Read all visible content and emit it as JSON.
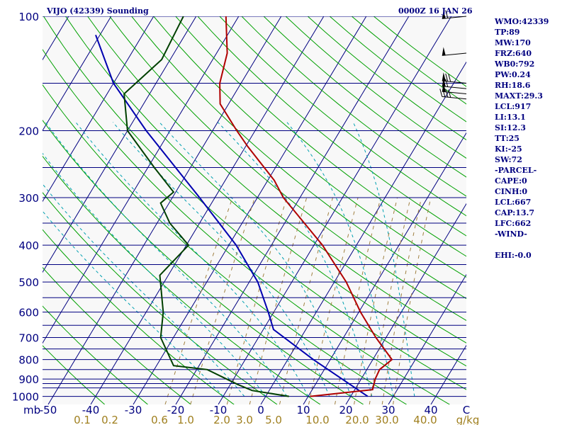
{
  "header": {
    "station": "VIJO (42339) Sounding",
    "time": "0000Z 16 JAN 26"
  },
  "indices": [
    "WMO:42339",
    "TP:89",
    "MW:170",
    "FRZ:640",
    "WB0:792",
    "PW:0.24",
    "RH:18.6",
    "MAXT:29.3",
    "LCL:917",
    "LI:13.1",
    "SI:12.3",
    "TT:25",
    "KI:-25",
    "SW:72",
    "-PARCEL-",
    "CAPE:0",
    "CINH:0",
    "LCL:667",
    "CAP:13.7",
    "LFC:662",
    "-WIND-",
    "",
    "EHI:-0.0"
  ],
  "colors": {
    "text": "#000080",
    "isobar": "#000080",
    "isotherm": "#000080",
    "dry_adiabat": "#00a000",
    "moist_adiabat": "#00a0b0",
    "mixing_ratio": "#a08040",
    "temperature": "#b00000",
    "dewpoint": "#004000",
    "parcel": "#0000b0",
    "mixing_label": "#a08020",
    "plot_background": "#f8f8f8"
  },
  "chart_data": {
    "type": "skew-t",
    "pressure_unit": "mb",
    "mixing_ratio_unit": "g/kg",
    "pressure_ticks": [
      "100",
      "200",
      "300",
      "400",
      "500",
      "600",
      "700",
      "800",
      "900",
      "1000"
    ],
    "isobars": [
      100,
      150,
      200,
      250,
      300,
      350,
      400,
      450,
      500,
      550,
      600,
      650,
      700,
      750,
      800,
      850,
      900,
      925,
      950,
      1000
    ],
    "temperature_ticks": [
      "-50",
      "-40",
      "-30",
      "-20",
      "-10",
      "0",
      "10",
      "20",
      "30",
      "40",
      "C"
    ],
    "mixing_ratio_ticks": [
      "0.1",
      "0.2",
      "0.6",
      "1.0",
      "2.0",
      "3.0",
      "5.0",
      "10.0",
      "20.0",
      "30.0",
      "40.0"
    ],
    "temperature_profile": [
      {
        "p": 1000,
        "t": 10.5
      },
      {
        "p": 960,
        "t": 24.2
      },
      {
        "p": 900,
        "t": 23.3
      },
      {
        "p": 850,
        "t": 23.0
      },
      {
        "p": 800,
        "t": 24.5
      },
      {
        "p": 700,
        "t": 17.6
      },
      {
        "p": 600,
        "t": 10.4
      },
      {
        "p": 500,
        "t": 2.8
      },
      {
        "p": 400,
        "t": -8.0
      },
      {
        "p": 300,
        "t": -23.9
      },
      {
        "p": 270,
        "t": -28.5
      },
      {
        "p": 220,
        "t": -39.5
      },
      {
        "p": 200,
        "t": -44.3
      },
      {
        "p": 170,
        "t": -52.0
      },
      {
        "p": 150,
        "t": -55.0
      },
      {
        "p": 125,
        "t": -57.5
      },
      {
        "p": 100,
        "t": -63.0
      }
    ],
    "dewpoint_profile": [
      {
        "p": 1000,
        "t": 5.5
      },
      {
        "p": 965,
        "t": -4.0
      },
      {
        "p": 930,
        "t": -8.3
      },
      {
        "p": 850,
        "t": -17.5
      },
      {
        "p": 830,
        "t": -26.0
      },
      {
        "p": 700,
        "t": -33.0
      },
      {
        "p": 600,
        "t": -36.0
      },
      {
        "p": 480,
        "t": -42.0
      },
      {
        "p": 400,
        "t": -39.5
      },
      {
        "p": 350,
        "t": -47.0
      },
      {
        "p": 310,
        "t": -52.0
      },
      {
        "p": 290,
        "t": -50.5
      },
      {
        "p": 250,
        "t": -58.5
      },
      {
        "p": 200,
        "t": -70.0
      },
      {
        "p": 160,
        "t": -76.0
      },
      {
        "p": 130,
        "t": -72.0
      },
      {
        "p": 100,
        "t": -73.0
      }
    ],
    "parcel_profile": [
      {
        "p": 1000,
        "t": 24.0
      },
      {
        "p": 900,
        "t": 15.5
      },
      {
        "p": 800,
        "t": 6.0
      },
      {
        "p": 667,
        "t": -7.6
      },
      {
        "p": 600,
        "t": -11.3
      },
      {
        "p": 500,
        "t": -18.0
      },
      {
        "p": 400,
        "t": -28.3
      },
      {
        "p": 300,
        "t": -43.6
      },
      {
        "p": 200,
        "t": -65.6
      },
      {
        "p": 150,
        "t": -80.0
      },
      {
        "p": 112,
        "t": -91.0
      }
    ],
    "wind_barbs": [
      {
        "p": 100,
        "speed_kt": 65,
        "direction_deg": 250
      },
      {
        "p": 125,
        "speed_kt": 55,
        "direction_deg": 250
      },
      {
        "p": 150,
        "speed_kt": 70,
        "direction_deg": 250
      },
      {
        "p": 155,
        "speed_kt": 60,
        "direction_deg": 250
      },
      {
        "p": 160,
        "speed_kt": 55,
        "direction_deg": 250
      },
      {
        "p": 165,
        "speed_kt": 40,
        "direction_deg": 250
      }
    ]
  }
}
